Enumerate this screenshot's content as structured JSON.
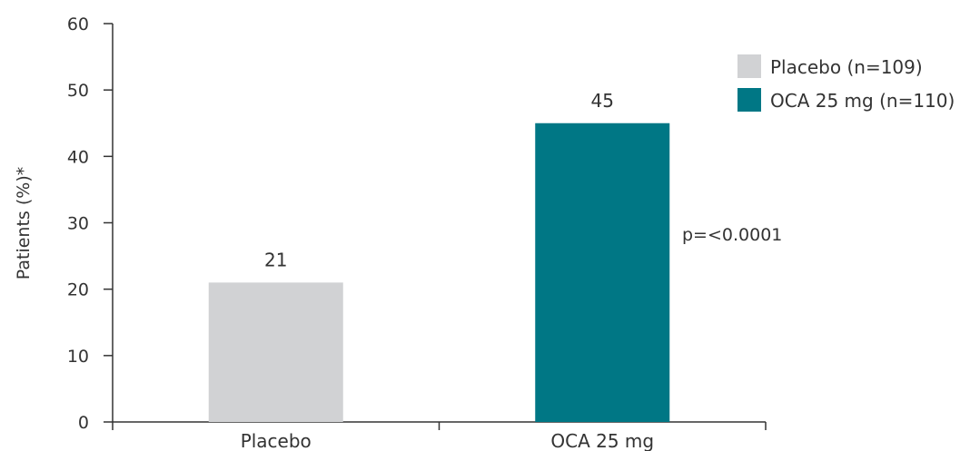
{
  "chart_data": {
    "type": "bar",
    "categories": [
      "Placebo",
      "OCA 25 mg"
    ],
    "values": [
      21,
      45
    ],
    "value_labels": [
      "21",
      "45"
    ],
    "colors": [
      "#d1d2d4",
      "#007785"
    ],
    "ylabel": "Patients (%)*",
    "ylim": [
      0,
      60
    ],
    "yticks": [
      0,
      10,
      20,
      30,
      40,
      50,
      60
    ],
    "grid": false,
    "legend": {
      "placement": "top-right",
      "entries": [
        {
          "label": "Placebo (n=109)",
          "color": "#d1d2d4"
        },
        {
          "label": "OCA 25 mg (n=110)",
          "color": "#007785"
        }
      ]
    },
    "annotation": "p=<0.0001"
  }
}
